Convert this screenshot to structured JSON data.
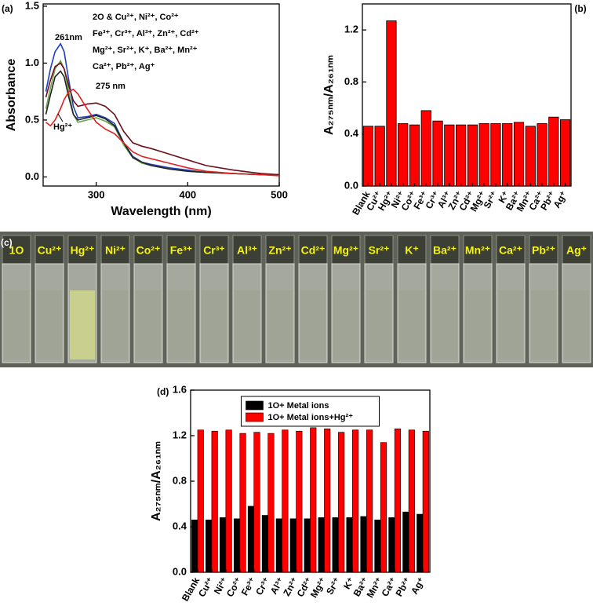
{
  "chart_data": [
    {
      "type": "line",
      "panel_label": "(a)",
      "xlabel": "Wavelength (nm)",
      "ylabel": "Absorbance",
      "x": [
        245,
        250,
        255,
        261,
        265,
        270,
        275,
        280,
        290,
        300,
        310,
        320,
        330,
        340,
        350,
        360,
        380,
        400,
        420,
        450,
        480,
        500
      ],
      "series": [
        {
          "color": "#1f3fbf",
          "values": [
            0.75,
            0.95,
            1.1,
            1.17,
            1.1,
            0.85,
            0.62,
            0.52,
            0.53,
            0.55,
            0.52,
            0.47,
            0.3,
            0.18,
            0.13,
            0.11,
            0.08,
            0.06,
            0.04,
            0.03,
            0.02,
            0.02
          ]
        },
        {
          "color": "#6aa84f",
          "values": [
            0.6,
            0.78,
            0.95,
            1.02,
            0.95,
            0.75,
            0.55,
            0.48,
            0.5,
            0.52,
            0.49,
            0.44,
            0.28,
            0.17,
            0.12,
            0.1,
            0.07,
            0.05,
            0.04,
            0.03,
            0.02,
            0.02
          ]
        },
        {
          "color": "#222222",
          "values": [
            0.55,
            0.72,
            0.88,
            0.93,
            0.88,
            0.7,
            0.55,
            0.5,
            0.52,
            0.54,
            0.51,
            0.45,
            0.3,
            0.17,
            0.13,
            0.1,
            0.07,
            0.05,
            0.04,
            0.03,
            0.02,
            0.02
          ]
        },
        {
          "color": "#6b0f1a",
          "values": [
            0.7,
            0.85,
            0.97,
            1.0,
            0.95,
            0.8,
            0.67,
            0.62,
            0.64,
            0.65,
            0.62,
            0.55,
            0.4,
            0.3,
            0.27,
            0.25,
            0.2,
            0.15,
            0.1,
            0.06,
            0.03,
            0.02
          ]
        },
        {
          "color": "#e02020",
          "values": [
            0.48,
            0.45,
            0.5,
            0.6,
            0.68,
            0.75,
            0.77,
            0.73,
            0.6,
            0.48,
            0.42,
            0.38,
            0.3,
            0.22,
            0.18,
            0.16,
            0.12,
            0.08,
            0.05,
            0.03,
            0.02,
            0.01
          ]
        }
      ],
      "xlim": [
        242,
        500
      ],
      "xticks": [
        300,
        400,
        500
      ],
      "ylim": [
        -0.08,
        1.52
      ],
      "yticks": [
        {
          "value": 0,
          "label": "0.0"
        },
        {
          "value": 0.5,
          "label": "0.5"
        },
        {
          "value": 1,
          "label": "1.0"
        },
        {
          "value": 1.5,
          "label": "1.5"
        }
      ],
      "annotations": [
        "261nm",
        "275 nm",
        "Hg²⁺",
        "2O & Cu²⁺, Ni²⁺, Co²⁺",
        "Fe³⁺, Cr³⁺, Al³⁺, Zn²⁺, Cd²⁺",
        "Mg²⁺, Sr²⁺, K⁺, Ba²⁺, Mn²⁺",
        "Ca²⁺, Pb²⁺, Ag⁺"
      ]
    },
    {
      "type": "bar",
      "panel_label": "(b)",
      "ylabel": "A₂₇₅ₙₘ/A₂₆₁ₙₘ",
      "color": "#ff0000",
      "categories": [
        "Blank",
        "Cu²⁺",
        "Hg²⁺",
        "Ni²⁺",
        "Co²⁺",
        "Fe³⁺",
        "Cr³⁺",
        "Al³⁺",
        "Zn²⁺",
        "Cd²⁺",
        "Mg²⁺",
        "Sr²⁺",
        "K⁺",
        "Ba²⁺",
        "Mn²⁺",
        "Ca²⁺",
        "Pb²⁺",
        "Ag⁺"
      ],
      "values": [
        0.46,
        0.46,
        1.27,
        0.48,
        0.47,
        0.58,
        0.5,
        0.47,
        0.47,
        0.47,
        0.48,
        0.48,
        0.48,
        0.49,
        0.46,
        0.48,
        0.53,
        0.51
      ],
      "ylim": [
        0,
        1.4
      ],
      "yticks": [
        {
          "value": 0,
          "label": "0.0"
        },
        {
          "value": 0.4,
          "label": "0.4"
        },
        {
          "value": 0.8,
          "label": "0.8"
        },
        {
          "value": 1.2,
          "label": "1.2"
        }
      ]
    },
    {
      "type": "grouped-bar",
      "panel_label": "(d)",
      "ylabel": "A₂₇₅ₙₘ/A₂₆₁ₙₘ",
      "legend": "upper center",
      "categories": [
        "Blank",
        "Cu²⁺",
        "Ni²⁺",
        "Co²⁺",
        "Fe³⁺",
        "Cr³⁺",
        "Al³⁺",
        "Zn²⁺",
        "Cd²⁺",
        "Mg²⁺",
        "Sr²⁺",
        "K⁺",
        "Ba²⁺",
        "Mn²⁺",
        "Ca²⁺",
        "Pb²⁺",
        "Ag⁺"
      ],
      "series": [
        {
          "name": "1O+ Metal ions",
          "color": "#000000",
          "values": [
            0.46,
            0.46,
            0.48,
            0.47,
            0.58,
            0.5,
            0.47,
            0.47,
            0.47,
            0.48,
            0.48,
            0.48,
            0.49,
            0.46,
            0.48,
            0.53,
            0.51
          ]
        },
        {
          "name": "1O+ Metal ions+Hg²⁺",
          "color": "#ff0000",
          "values": [
            1.25,
            1.24,
            1.25,
            1.22,
            1.23,
            1.22,
            1.25,
            1.24,
            1.27,
            1.26,
            1.23,
            1.25,
            1.25,
            1.14,
            1.26,
            1.25,
            1.24
          ]
        }
      ],
      "ylim": [
        0,
        1.6
      ],
      "yticks": [
        {
          "value": 0,
          "label": "0.0"
        },
        {
          "value": 0.4,
          "label": "0.4"
        },
        {
          "value": 0.8,
          "label": "0.8"
        },
        {
          "value": 1.2,
          "label": "1.2"
        },
        {
          "value": 1.6,
          "label": "1.6"
        }
      ]
    }
  ],
  "photo": {
    "panel_label": "(c)",
    "labels": [
      "1O",
      "Cu²⁺",
      "Hg²⁺",
      "Ni²⁺",
      "Co²⁺",
      "Fe³⁺",
      "Cr³⁺",
      "Al³⁺",
      "Zn²⁺",
      "Cd²⁺",
      "Mg²⁺",
      "Sr²⁺",
      "K⁺",
      "Ba²⁺",
      "Mn²⁺",
      "Ca²⁺",
      "Pb²⁺",
      "Ag⁺"
    ]
  }
}
